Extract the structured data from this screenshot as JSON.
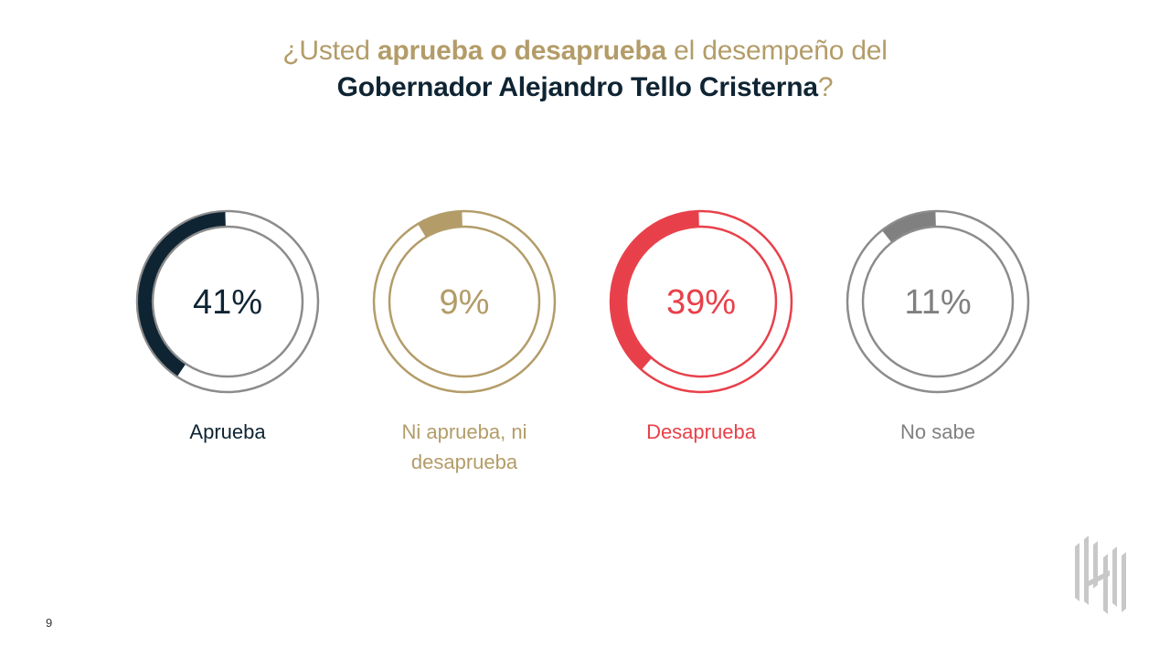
{
  "title": {
    "line1_part1": "¿Usted ",
    "line1_bold": "aprueba o desaprueba",
    "line1_part2": " el desempeño del",
    "line2_bold": "Gobernador Alejandro Tello Cristerna",
    "line2_end": "?"
  },
  "chart_data": {
    "type": "pie",
    "title": "¿Usted aprueba o desaprueba el desempeño del Gobernador Alejandro Tello Cristerna?",
    "unit": "%",
    "categories": [
      "Aprueba",
      "Ni aprueba, ni desaprueba",
      "Desaprueba",
      "No sabe"
    ],
    "values": [
      41,
      9,
      39,
      11
    ],
    "value_labels": [
      "41%",
      "9%",
      "39%",
      "11%"
    ],
    "label_lines": [
      [
        "Aprueba"
      ],
      [
        "Ni aprueba, ni",
        "desaprueba"
      ],
      [
        "Desaprueba"
      ],
      [
        "No sabe"
      ]
    ],
    "colors": [
      "#0f2433",
      "#b39c68",
      "#e8404a",
      "#808080"
    ],
    "ring_colors": [
      "#8c8c8c",
      "#b39c68",
      "#e8404a",
      "#8c8c8c"
    ],
    "value_text_colors": [
      "#0f2433",
      "#b39c68",
      "#e8404a",
      "#808080"
    ],
    "label_colors": [
      "#0f2433",
      "#b39c68",
      "#e8404a",
      "#808080"
    ]
  },
  "footer": {
    "page_number": "9"
  },
  "logo": {
    "icon": "firm-logo-icon"
  }
}
